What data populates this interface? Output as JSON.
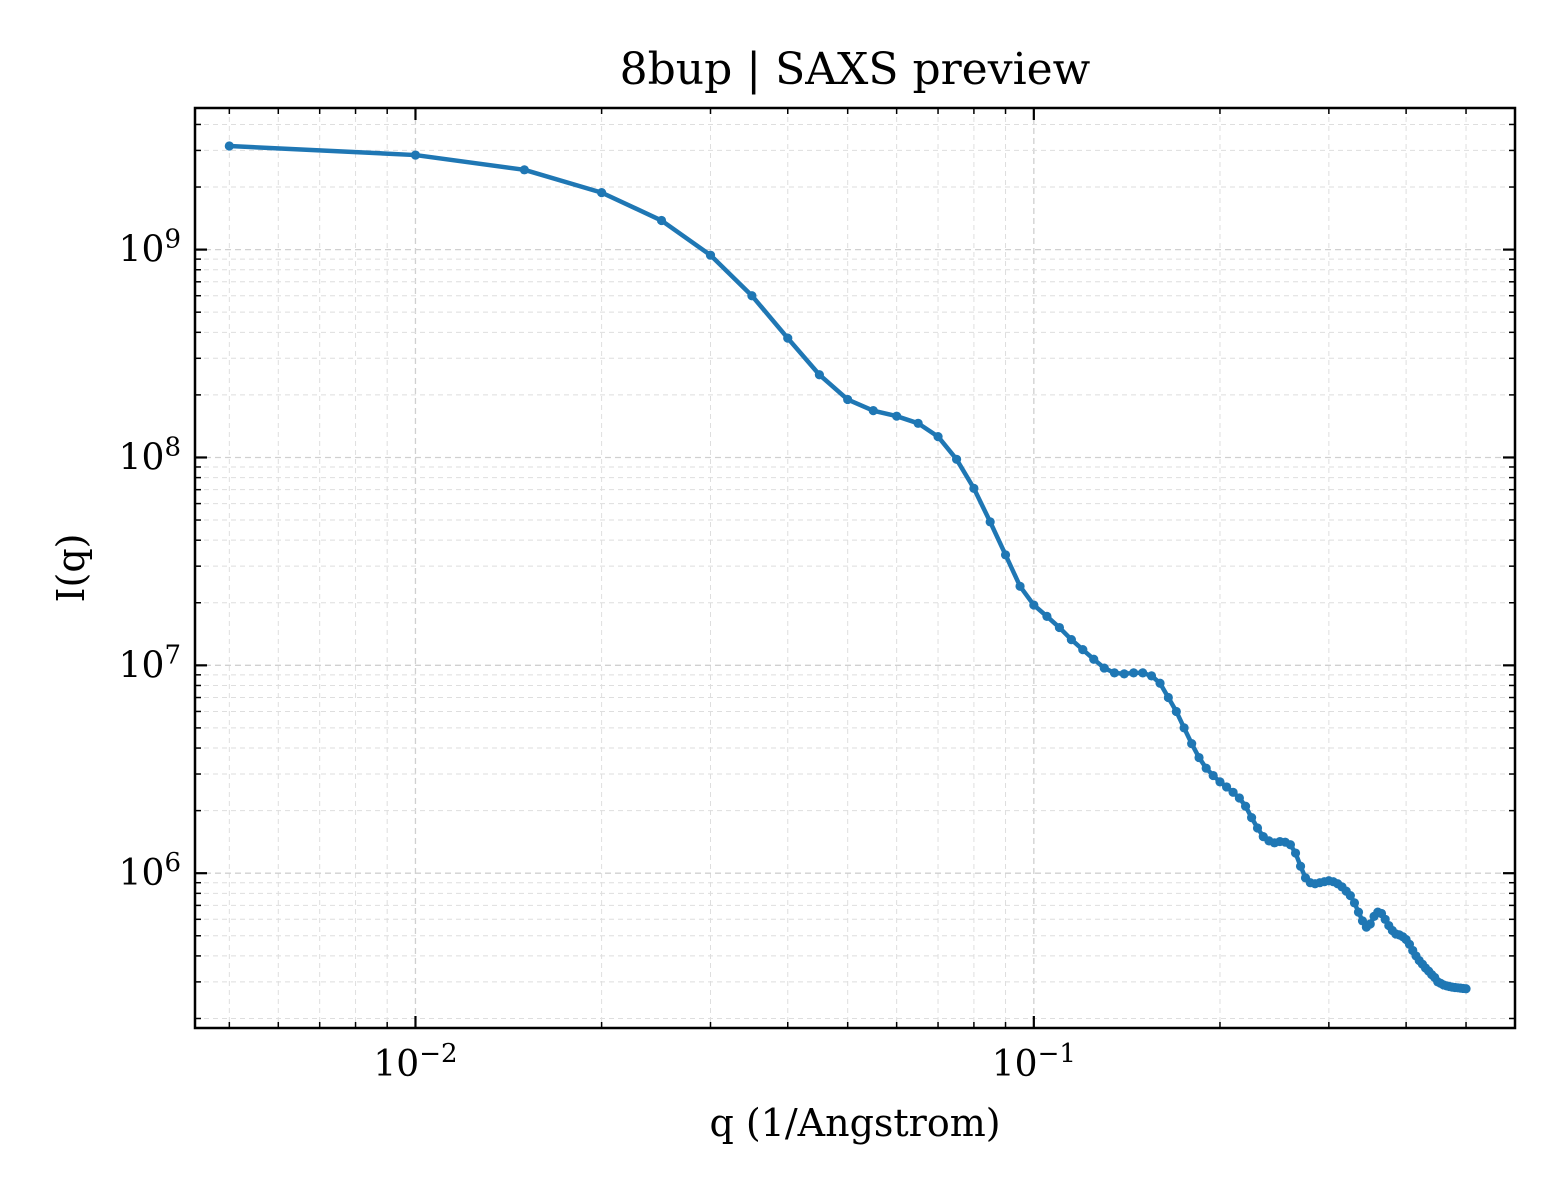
{
  "chart_data": {
    "type": "line",
    "title": "8bup | SAXS preview",
    "xlabel": "q (1/Angstrom)",
    "ylabel": "I(q)",
    "xscale": "log",
    "yscale": "log",
    "xlim": [
      0.0044,
      0.6
    ],
    "ylim": [
      180000,
      4800000000
    ],
    "grid": true,
    "x_ticks": [
      {
        "value": 0.01,
        "base": "10",
        "exp": "−2"
      },
      {
        "value": 0.1,
        "base": "10",
        "exp": "−1"
      }
    ],
    "y_ticks": [
      {
        "value": 1000000,
        "base": "10",
        "exp": "6"
      },
      {
        "value": 10000000,
        "base": "10",
        "exp": "7"
      },
      {
        "value": 100000000,
        "base": "10",
        "exp": "8"
      },
      {
        "value": 1000000000,
        "base": "10",
        "exp": "9"
      }
    ],
    "colors": {
      "line": "#1f77b4"
    },
    "series": [
      {
        "x": [
          0.005,
          0.01,
          0.015,
          0.02,
          0.025,
          0.03,
          0.035,
          0.04,
          0.045,
          0.05,
          0.055,
          0.06,
          0.065,
          0.07,
          0.075,
          0.08,
          0.085,
          0.09,
          0.095,
          0.1,
          0.105,
          0.11,
          0.115,
          0.12,
          0.125,
          0.13,
          0.135,
          0.14,
          0.145,
          0.15,
          0.155,
          0.16,
          0.165,
          0.17,
          0.175,
          0.18,
          0.185,
          0.19,
          0.195,
          0.2,
          0.205,
          0.21,
          0.215,
          0.22,
          0.225,
          0.23,
          0.235,
          0.24,
          0.245,
          0.25,
          0.255,
          0.26,
          0.265,
          0.27,
          0.275,
          0.28,
          0.285,
          0.29,
          0.295,
          0.3,
          0.305,
          0.31,
          0.315,
          0.32,
          0.325,
          0.33,
          0.335,
          0.34,
          0.345,
          0.35,
          0.355,
          0.36,
          0.365,
          0.37,
          0.375,
          0.38,
          0.385,
          0.39,
          0.395,
          0.4,
          0.405,
          0.41,
          0.415,
          0.42,
          0.425,
          0.43,
          0.435,
          0.44,
          0.445,
          0.45,
          0.455,
          0.46,
          0.465,
          0.47,
          0.475,
          0.48,
          0.485,
          0.49,
          0.495,
          0.5
        ],
        "y": [
          3150000000,
          2850000000,
          2420000000,
          1880000000,
          1380000000,
          940000000,
          600000000,
          375000000,
          250000000,
          190000000,
          168000000,
          158000000,
          146000000,
          126000000,
          98000000,
          71000000,
          49000000,
          34000000,
          24000000,
          19500000,
          17200000,
          15200000,
          13300000,
          11900000,
          10700000,
          9700000,
          9200000,
          9100000,
          9200000,
          9200000,
          8900000,
          8200000,
          7000000,
          6000000,
          5000000,
          4200000,
          3600000,
          3200000,
          2950000,
          2750000,
          2600000,
          2450000,
          2300000,
          2100000,
          1850000,
          1650000,
          1500000,
          1430000,
          1400000,
          1420000,
          1410000,
          1370000,
          1250000,
          1080000,
          950000,
          900000,
          890000,
          900000,
          910000,
          920000,
          910000,
          890000,
          860000,
          820000,
          780000,
          720000,
          650000,
          590000,
          550000,
          570000,
          620000,
          650000,
          640000,
          600000,
          560000,
          530000,
          510000,
          505000,
          495000,
          480000,
          455000,
          425000,
          400000,
          380000,
          365000,
          350000,
          338000,
          325000,
          315000,
          300000,
          295000,
          290000,
          287000,
          285000,
          283000,
          282000,
          281000,
          280000,
          279000,
          278000
        ]
      }
    ]
  }
}
